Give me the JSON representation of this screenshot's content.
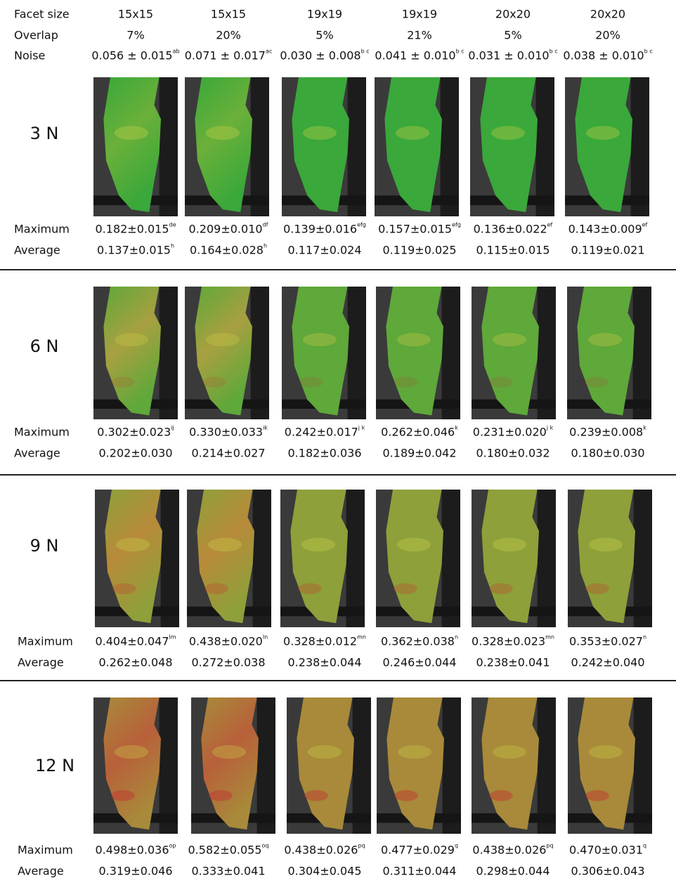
{
  "header": {
    "rows": [
      {
        "label": "Facet size",
        "cells": [
          {
            "text": "15x15"
          },
          {
            "text": "15x15"
          },
          {
            "text": "19x19"
          },
          {
            "text": "19x19"
          },
          {
            "text": "20x20"
          },
          {
            "text": "20x20"
          }
        ]
      },
      {
        "label": "Overlap",
        "cells": [
          {
            "text": "7%"
          },
          {
            "text": "20%"
          },
          {
            "text": "5%"
          },
          {
            "text": "21%"
          },
          {
            "text": "5%"
          },
          {
            "text": "20%"
          }
        ]
      },
      {
        "label": "Noise",
        "cells": [
          {
            "text": "0.056 ± 0.015",
            "sup": "ab"
          },
          {
            "text": "0.071 ± 0.017",
            "sup": "ac"
          },
          {
            "text": "0.030 ± 0.008",
            "sup": "b c"
          },
          {
            "text": "0.041 ± 0.010",
            "sup": "b c"
          },
          {
            "text": "0.031 ± 0.010",
            "sup": "b c"
          },
          {
            "text": "0.038 ± 0.010",
            "sup": "b c"
          }
        ]
      }
    ]
  },
  "groups": [
    {
      "label": "3 N",
      "maximum": {
        "label": "Maximum",
        "cells": [
          {
            "text": "0.182±0.015",
            "sup": "de"
          },
          {
            "text": "0.209±0.010",
            "sup": "df"
          },
          {
            "text": "0.139±0.016",
            "sup": "efg"
          },
          {
            "text": "0.157±0.015",
            "sup": "efg"
          },
          {
            "text": "0.136±0.022",
            "sup": "ef"
          },
          {
            "text": "0.143±0.009",
            "sup": "ef"
          }
        ]
      },
      "average": {
        "label": "Average",
        "cells": [
          {
            "text": "0.137±0.015",
            "sup": "h"
          },
          {
            "text": "0.164±0.028",
            "sup": "h"
          },
          {
            "text": "0.117±0.024"
          },
          {
            "text": "0.119±0.025"
          },
          {
            "text": "0.115±0.015"
          },
          {
            "text": "0.119±0.021"
          }
        ]
      }
    },
    {
      "label": "6 N",
      "maximum": {
        "label": "Maximum",
        "cells": [
          {
            "text": "0.302±0.023",
            "sup": "ij"
          },
          {
            "text": "0.330±0.033",
            "sup": "ik"
          },
          {
            "text": "0.242±0.017",
            "sup": "j k"
          },
          {
            "text": "0.262±0.046",
            "sup": "k"
          },
          {
            "text": "0.231±0.020",
            "sup": "j k"
          },
          {
            "text": "0.239±0.008",
            "sup": "k"
          }
        ]
      },
      "average": {
        "label": "Average",
        "cells": [
          {
            "text": "0.202±0.030"
          },
          {
            "text": "0.214±0.027"
          },
          {
            "text": "0.182±0.036"
          },
          {
            "text": "0.189±0.042"
          },
          {
            "text": "0.180±0.032"
          },
          {
            "text": "0.180±0.030"
          }
        ]
      }
    },
    {
      "label": "9 N",
      "maximum": {
        "label": "Maximum",
        "cells": [
          {
            "text": "0.404±0.047",
            "sup": "lm"
          },
          {
            "text": "0.438±0.020",
            "sup": "ln"
          },
          {
            "text": "0.328±0.012",
            "sup": "mn"
          },
          {
            "text": "0.362±0.038",
            "sup": "n"
          },
          {
            "text": "0.328±0.023",
            "sup": "mn"
          },
          {
            "text": "0.353±0.027",
            "sup": "n"
          }
        ]
      },
      "average": {
        "label": "Average",
        "cells": [
          {
            "text": "0.262±0.048"
          },
          {
            "text": "0.272±0.038"
          },
          {
            "text": "0.238±0.044"
          },
          {
            "text": "0.246±0.044"
          },
          {
            "text": "0.238±0.041"
          },
          {
            "text": "0.242±0.040"
          }
        ]
      }
    },
    {
      "label": "12 N",
      "maximum": {
        "label": "Maximum",
        "cells": [
          {
            "text": "0.498±0.036",
            "sup": "op"
          },
          {
            "text": "0.582±0.055",
            "sup": "oq"
          },
          {
            "text": "0.438±0.026",
            "sup": "pq"
          },
          {
            "text": "0.477±0.029",
            "sup": "q"
          },
          {
            "text": "0.438±0.026",
            "sup": "pq"
          },
          {
            "text": "0.470±0.031",
            "sup": "q"
          }
        ]
      },
      "average": {
        "label": "Average",
        "cells": [
          {
            "text": "0.319±0.046"
          },
          {
            "text": "0.333±0.041"
          },
          {
            "text": "0.304±0.045"
          },
          {
            "text": "0.311±0.044"
          },
          {
            "text": "0.298±0.044"
          },
          {
            "text": "0.306±0.043"
          }
        ]
      }
    }
  ]
}
